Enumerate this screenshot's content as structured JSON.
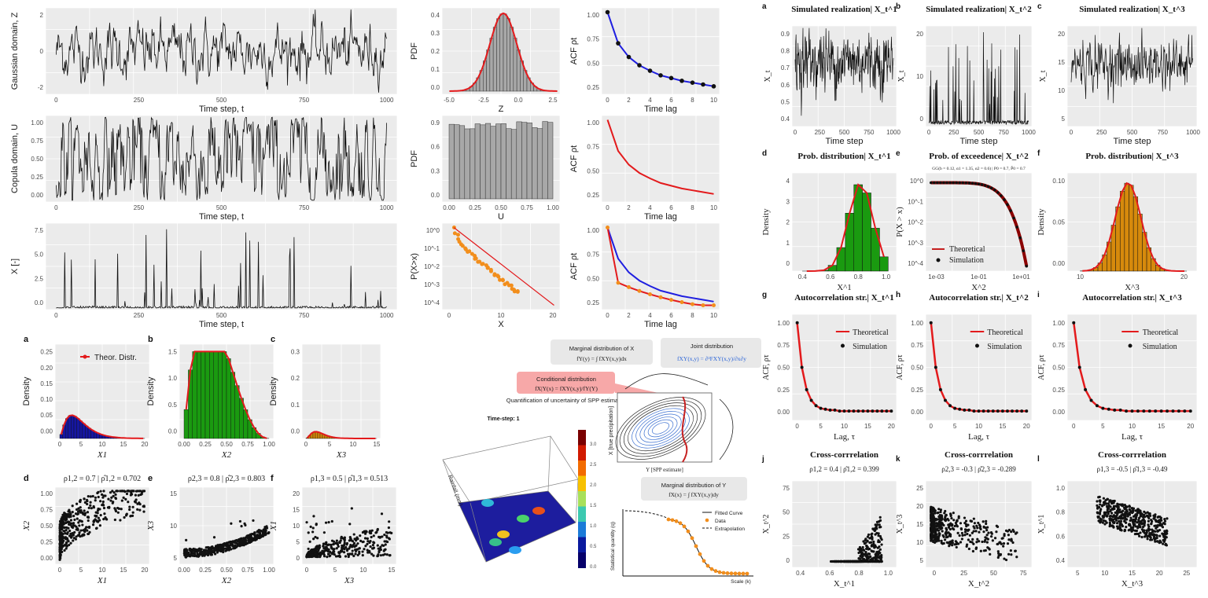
{
  "colors": {
    "panel_bg": "#ebebeb",
    "grid": "#ffffff",
    "series": "#111111",
    "red": "#e31a1c",
    "blue": "#1f1fe0",
    "orange": "#f28e1c",
    "green": "#1a9a10",
    "gold": "#d68a0c",
    "navy": "#1616a0",
    "hist_grey": "#a8a8a8"
  },
  "top_left": {
    "rows": [
      {
        "ylabel": "Gaussian domain, Z",
        "xlabel": "Time step, t",
        "xticks": [
          "0",
          "250",
          "500",
          "750",
          "1000"
        ],
        "yticks": [
          "2",
          "0",
          "-2"
        ],
        "ylim": [
          -3,
          3
        ]
      },
      {
        "ylabel": "Copula domain, U",
        "xlabel": "Time step, t",
        "xticks": [
          "0",
          "250",
          "500",
          "750",
          "1000"
        ],
        "yticks": [
          "1.00",
          "0.75",
          "0.50",
          "0.25",
          "0.00"
        ],
        "ylim": [
          0,
          1
        ]
      },
      {
        "ylabel": "X [-]",
        "xlabel": "Time step, t",
        "xticks": [
          "0",
          "250",
          "500",
          "750",
          "1000"
        ],
        "yticks": [
          "7.5",
          "5.0",
          "2.5",
          "0.0"
        ],
        "ylim": [
          0,
          9
        ]
      }
    ],
    "hists": [
      {
        "ylabel": "PDF",
        "xlabel": "Z",
        "xticks": [
          "-5.0",
          "-2.5",
          "0.0",
          "2.5"
        ],
        "yticks": [
          "0.4",
          "0.3",
          "0.2",
          "0.1",
          "0.0"
        ]
      },
      {
        "ylabel": "PDF",
        "xlabel": "U",
        "xticks": [
          "0.00",
          "0.25",
          "0.50",
          "0.75",
          "1.00"
        ],
        "yticks": [
          "0.9",
          "0.6",
          "0.3",
          "0.0"
        ]
      },
      {
        "ylabel": "P(X>x)",
        "xlabel": "X",
        "xticks": [
          "0",
          "10",
          "20"
        ],
        "yticks": [
          "10^0",
          "10^-1",
          "10^-2",
          "10^-3",
          "10^-4"
        ]
      }
    ],
    "acfs": [
      {
        "ylabel": "ACF ρt",
        "xlabel": "Time lag",
        "xticks": [
          "0",
          "2",
          "4",
          "6",
          "8",
          "10"
        ],
        "yticks": [
          "1.00",
          "0.75",
          "0.50",
          "0.25"
        ]
      },
      {
        "ylabel": "ACF ρt",
        "xlabel": "Time lag",
        "xticks": [
          "0",
          "2",
          "4",
          "6",
          "8",
          "10"
        ],
        "yticks": [
          "1.00",
          "0.75",
          "0.50",
          "0.25"
        ]
      },
      {
        "ylabel": "ACF ρt",
        "xlabel": "Time lag",
        "xticks": [
          "0",
          "2",
          "4",
          "6",
          "8",
          "10"
        ],
        "yticks": [
          "1.00",
          "0.75",
          "0.50",
          "0.25"
        ]
      }
    ]
  },
  "bottom_left": {
    "legend_label": "Theor. Distr.",
    "dists": [
      {
        "letter": "a",
        "ylabel": "Density",
        "xlabel": "X1",
        "xticks": [
          "0",
          "5",
          "10",
          "15",
          "20"
        ],
        "yticks": [
          "0.25",
          "0.20",
          "0.15",
          "0.10",
          "0.05",
          "0.00"
        ]
      },
      {
        "letter": "b",
        "ylabel": "Density",
        "xlabel": "X2",
        "xticks": [
          "0.00",
          "0.25",
          "0.50",
          "0.75",
          "1.00"
        ],
        "yticks": [
          "1.5",
          "1.0",
          "0.5",
          "0.0"
        ]
      },
      {
        "letter": "c",
        "ylabel": "Density",
        "xlabel": "X3",
        "xticks": [
          "0",
          "5",
          "10",
          "15"
        ],
        "yticks": [
          "0.3",
          "0.2",
          "0.1",
          "0.0"
        ]
      }
    ],
    "scatters": [
      {
        "letter": "d",
        "title": "ρ1,2 = 0.7 | ρ̂1,2 = 0.702",
        "xlabel": "X1",
        "ylabel": "X2",
        "xticks": [
          "0",
          "5",
          "10",
          "15",
          "20"
        ],
        "yticks": [
          "1.00",
          "0.75",
          "0.50",
          "0.25",
          "0.00"
        ]
      },
      {
        "letter": "e",
        "title": "ρ2,3 = 0.8 | ρ̂2,3 = 0.803",
        "xlabel": "X2",
        "ylabel": "X3",
        "xticks": [
          "0.00",
          "0.25",
          "0.50",
          "0.75",
          "1.00"
        ],
        "yticks": [
          "15",
          "10",
          "5"
        ]
      },
      {
        "letter": "f",
        "title": "ρ1,3 = 0.5 | ρ̂1,3 = 0.513",
        "xlabel": "X3",
        "ylabel": "X1",
        "xticks": [
          "0",
          "5",
          "10",
          "15"
        ],
        "yticks": [
          "20",
          "15",
          "10",
          "5",
          "0"
        ]
      }
    ]
  },
  "middle": {
    "timestep_label": "Time-step: 1",
    "rainfall_axis": "Rainfall (mm)",
    "colorbar_ticks": [
      "3.0",
      "2.5",
      "2.0",
      "1.5",
      "1.0",
      "0.5",
      "0.0"
    ],
    "marginal_x_title": "Marginal distribution of X",
    "marginal_x_formula": "fY(y) = ∫ fXY(x,y)dx",
    "joint_title": "Joint distribution",
    "joint_formula": "fXY(x,y) = ∂²FXY(x,y)/∂x∂y",
    "conditional_title": "Conditional distribution",
    "conditional_formula": "fX|Y(x) = fXY(x,y)/fY(Y)",
    "quant_note": "Quantification of uncertainty of SPP estimates",
    "contour_ylabel": "X [true precipitation]",
    "contour_xlabel": "Y [SPP estimate]",
    "marginal_y_title": "Marginal distribution of Y",
    "marginal_y_formula": "fX(x) = ∫ fXY(x,y)dy",
    "curve_ylabel": "Statistical quantity (q)",
    "curve_xlabel": "Scale (k)",
    "curve_legend": [
      "Fitted Curve",
      "Data",
      "Extrapolation"
    ]
  },
  "right": {
    "legend": {
      "theoretical": "Theoretical",
      "simulation": "Simulation"
    },
    "row1": [
      {
        "letter": "a",
        "title": "Simulated realization| X_t^1",
        "xlabel": "Time step",
        "ylabel": "X_t",
        "xticks": [
          "0",
          "250",
          "500",
          "750",
          "1000"
        ],
        "yticks": [
          "0.9",
          "0.8",
          "0.7",
          "0.6",
          "0.5",
          "0.4"
        ]
      },
      {
        "letter": "b",
        "title": "Simulated realization| X_t^2",
        "xlabel": "Time step",
        "ylabel": "X_t",
        "xticks": [
          "0",
          "250",
          "500",
          "750",
          "1000"
        ],
        "yticks": [
          "20",
          "10",
          "0"
        ]
      },
      {
        "letter": "c",
        "title": "Simulated realization| X_t^3",
        "xlabel": "Time step",
        "ylabel": "X_t",
        "xticks": [
          "0",
          "250",
          "500",
          "750",
          "1000"
        ],
        "yticks": [
          "20",
          "15",
          "10",
          "5"
        ]
      }
    ],
    "row2": [
      {
        "letter": "d",
        "title": "Prob. distribution| X_t^1",
        "xlabel": "X^1",
        "ylabel": "Density",
        "xticks": [
          "0.4",
          "0.6",
          "0.8",
          "1.0"
        ],
        "yticks": [
          "4",
          "3",
          "2",
          "1",
          "0"
        ]
      },
      {
        "letter": "e",
        "title": "Prob. of exceedence| X_t^2",
        "subtitle": "GG(b = 0.12, α1 = 1.35, α2 = 0.6) | P0 = 0.7, P̂0 = 0.7",
        "xlabel": "X^2",
        "ylabel": "P(X > x)",
        "xticks": [
          "1e-03",
          "1e-01",
          "1e+01"
        ],
        "yticks": [
          "10^0",
          "10^-1",
          "10^-2",
          "10^-3",
          "10^-4"
        ]
      },
      {
        "letter": "f",
        "title": "Prob. distribution| X_t^3",
        "xlabel": "X^3",
        "ylabel": "Density",
        "xticks": [
          "10",
          "20"
        ],
        "yticks": [
          "0.10",
          "0.05",
          "0.00"
        ]
      }
    ],
    "row3": [
      {
        "letter": "g",
        "title": "Autocorrelation str.| X_t^1",
        "xlabel": "Lag, τ",
        "ylabel": "ACF, ρτ",
        "xticks": [
          "0",
          "5",
          "10",
          "15",
          "20"
        ],
        "yticks": [
          "1.00",
          "0.75",
          "0.50",
          "0.25",
          "0.00"
        ]
      },
      {
        "letter": "h",
        "title": "Autocorrelation str.| X_t^2",
        "xlabel": "Lag, τ",
        "ylabel": "ACF, ρτ",
        "xticks": [
          "0",
          "5",
          "10",
          "15",
          "20"
        ],
        "yticks": [
          "1.00",
          "0.75",
          "0.50",
          "0.25",
          "0.00"
        ]
      },
      {
        "letter": "i",
        "title": "Autocorrelation str.| X_t^3",
        "xlabel": "Lag, τ",
        "ylabel": "ACF, ρτ",
        "xticks": [
          "0",
          "5",
          "10",
          "15",
          "20"
        ],
        "yticks": [
          "1.00",
          "0.75",
          "0.50",
          "0.25",
          "0.00"
        ]
      }
    ],
    "row4": [
      {
        "letter": "j",
        "title": "Cross-corrrelation",
        "subtitle": "ρ1,2 = 0.4 | ρ̂1,2 = 0.399",
        "xlabel": "X_t^1",
        "ylabel": "X_t^2",
        "xticks": [
          "0.4",
          "0.6",
          "0.8",
          "1.0"
        ],
        "yticks": [
          "75",
          "50",
          "25",
          "0"
        ]
      },
      {
        "letter": "k",
        "title": "Cross-corrrelation",
        "subtitle": "ρ2,3 = -0.3 | ρ̂2,3 = -0.289",
        "xlabel": "X_t^2",
        "ylabel": "X_t^3",
        "xticks": [
          "0",
          "25",
          "50",
          "75"
        ],
        "yticks": [
          "25",
          "20",
          "15",
          "10",
          "5"
        ]
      },
      {
        "letter": "l",
        "title": "Cross-corrrelation",
        "subtitle": "ρ1,3 = -0.5 | ρ̂1,3 = -0.49",
        "xlabel": "X_t^3",
        "ylabel": "X_t^1",
        "xticks": [
          "5",
          "10",
          "15",
          "20",
          "25"
        ],
        "yticks": [
          "1.0",
          "0.8",
          "0.6",
          "0.4"
        ]
      }
    ]
  },
  "chart_data": [
    {
      "type": "line",
      "panel": "acf-top",
      "x": [
        0,
        1,
        2,
        3,
        4,
        5,
        6,
        7,
        8,
        9,
        10
      ],
      "series": [
        {
          "values": [
            1.0,
            0.66,
            0.51,
            0.42,
            0.36,
            0.31,
            0.28,
            0.25,
            0.23,
            0.21,
            0.19
          ]
        }
      ]
    },
    {
      "type": "line",
      "panel": "acf-right",
      "x": [
        0,
        1,
        2,
        3,
        4,
        5,
        6,
        7,
        8,
        9,
        10,
        11,
        12,
        13,
        14,
        15,
        16,
        17,
        18,
        19,
        20
      ],
      "series": [
        {
          "name": "Theoretical",
          "values": [
            1.0,
            0.5,
            0.25,
            0.13,
            0.07,
            0.04,
            0.03,
            0.02,
            0.02,
            0.01,
            0.01,
            0.01,
            0.01,
            0.01,
            0.01,
            0.01,
            0.01,
            0.01,
            0.01,
            0.01,
            0.01
          ]
        }
      ]
    }
  ]
}
